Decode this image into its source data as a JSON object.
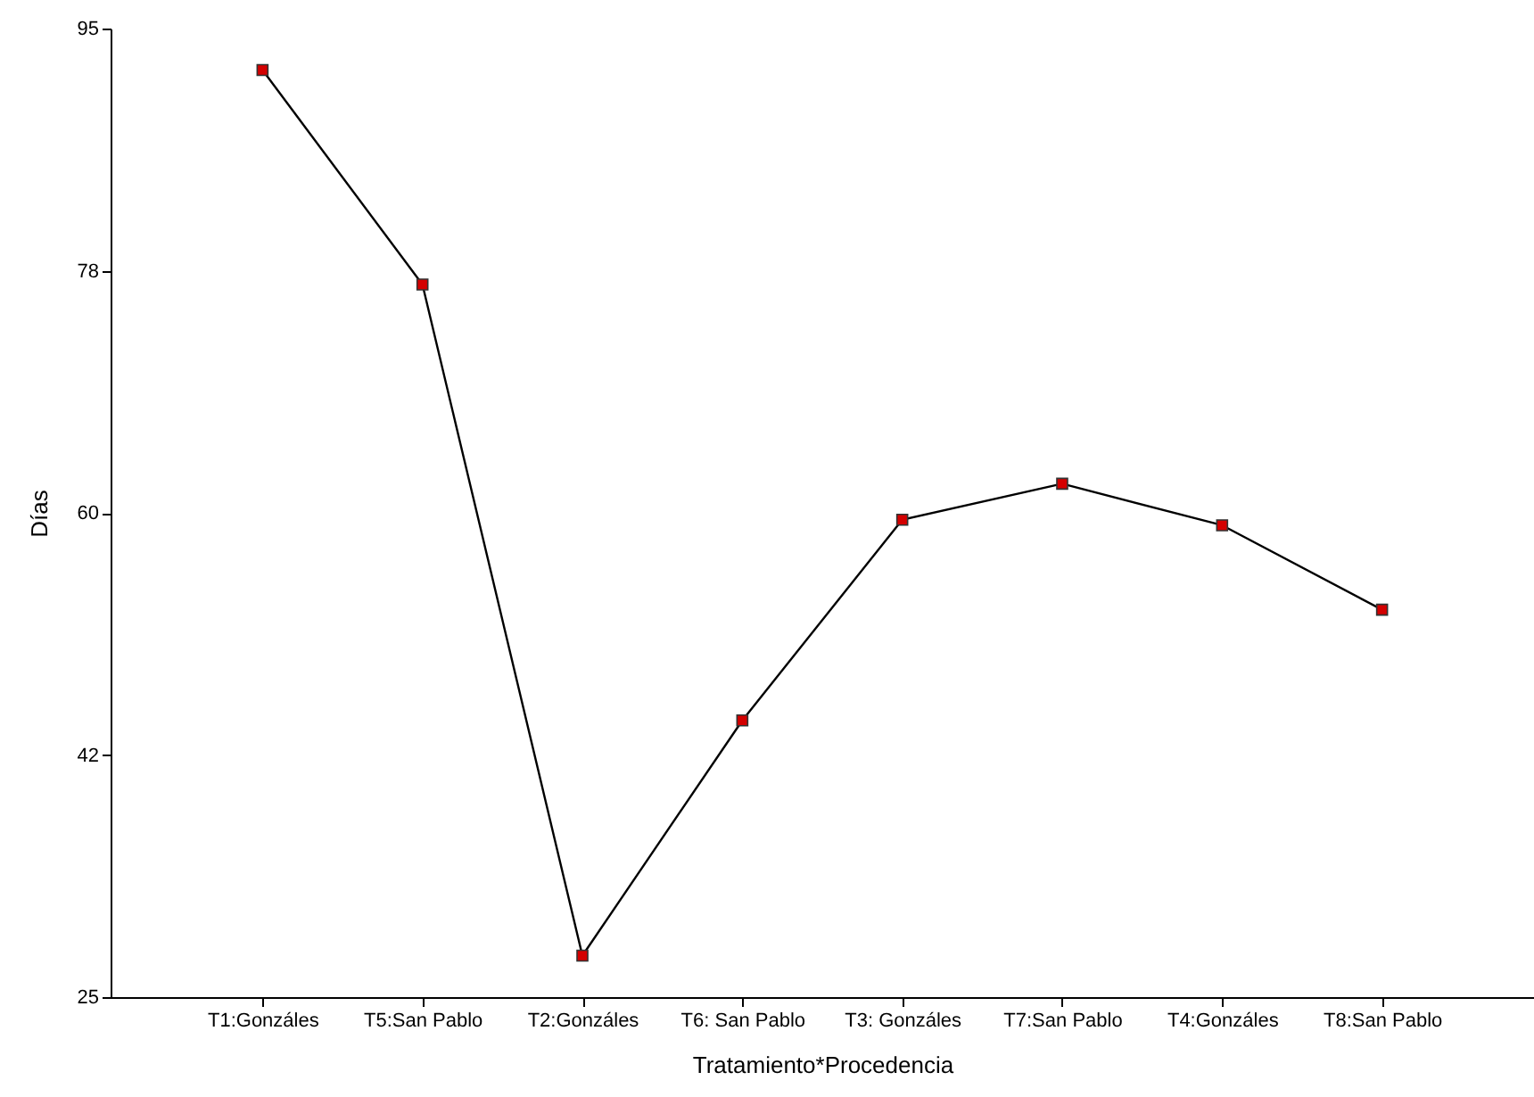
{
  "chart_data": {
    "type": "line",
    "xlabel": "Tratamiento*Procedencia",
    "ylabel": "Días",
    "categories": [
      "T1:Gonzáles",
      "T5:San Pablo",
      "T2:Gonzáles",
      "T6: San Pablo",
      "T3: Gonzáles",
      "T7:San Pablo",
      "T4:Gonzáles",
      "T8:San Pablo"
    ],
    "series": [
      {
        "color": "#000000",
        "values": [
          92.0,
          76.5,
          28.0,
          45.0,
          59.5,
          62.1,
          59.1,
          53.0
        ]
      }
    ],
    "colors": [
      "#d40000",
      "#d40000",
      "#d40000",
      "#d40000",
      "#d40000",
      "#d40000",
      "#d40000",
      "#d40000"
    ],
    "ylim": [
      25,
      95
    ],
    "yticks": [
      25,
      {
        "value": 42.5,
        "label": "42"
      },
      60,
      {
        "value": 77.5,
        "label": "78"
      },
      95
    ],
    "marker": "square",
    "grid": false
  }
}
